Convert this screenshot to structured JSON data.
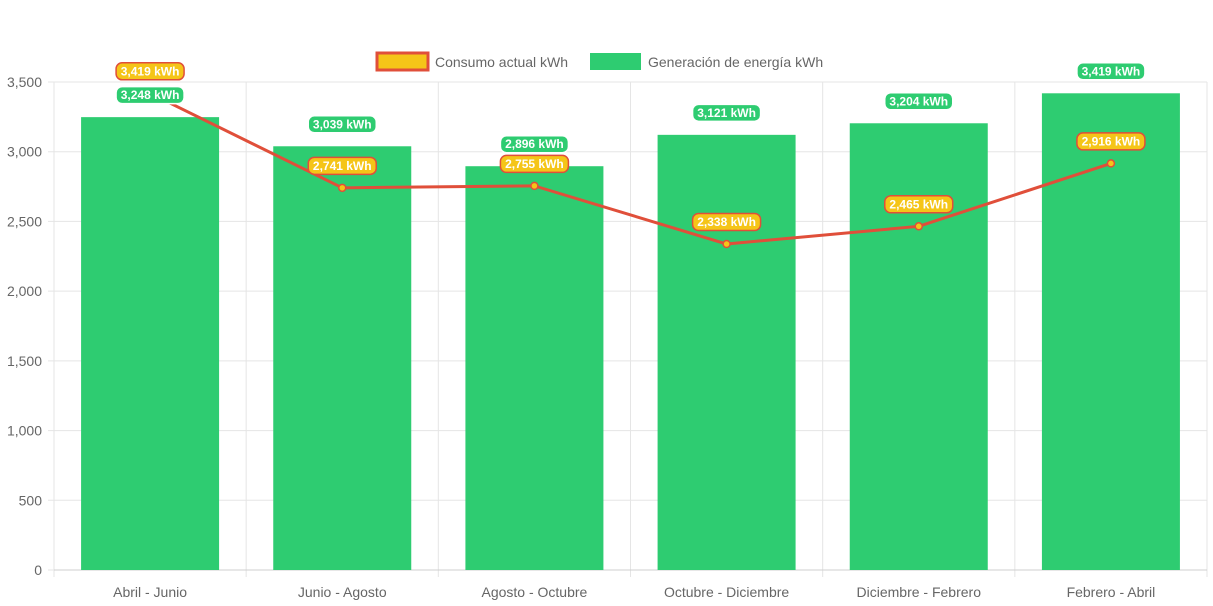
{
  "chart_data": {
    "type": "bar",
    "categories": [
      "Abril - Junio",
      "Junio - Agosto",
      "Agosto - Octubre",
      "Octubre - Diciembre",
      "Diciembre - Febrero",
      "Febrero - Abril"
    ],
    "series": [
      {
        "name": "Consumo actual kWh",
        "type": "line",
        "values": [
          3419,
          2741,
          2755,
          2338,
          2465,
          2916
        ],
        "labels": [
          "3,419 kWh",
          "2,741 kWh",
          "2,755 kWh",
          "2,338 kWh",
          "2,465 kWh",
          "2,916 kWh"
        ],
        "color": "#e04f3a",
        "label_color": "#f5c518"
      },
      {
        "name": "Generación de energía kWh",
        "type": "bar",
        "values": [
          3248,
          3039,
          2896,
          3121,
          3204,
          3419
        ],
        "labels": [
          "3,248 kWh",
          "3,039 kWh",
          "2,896 kWh",
          "3,121 kWh",
          "3,204 kWh",
          "3,419 kWh"
        ],
        "color": "#2ecc71"
      }
    ],
    "y_ticks": [
      "0",
      "500",
      "1,000",
      "1,500",
      "2,000",
      "2,500",
      "3,000",
      "3,500"
    ],
    "ylim": [
      0,
      3500
    ],
    "grid": true,
    "legend_position": "top-center"
  }
}
